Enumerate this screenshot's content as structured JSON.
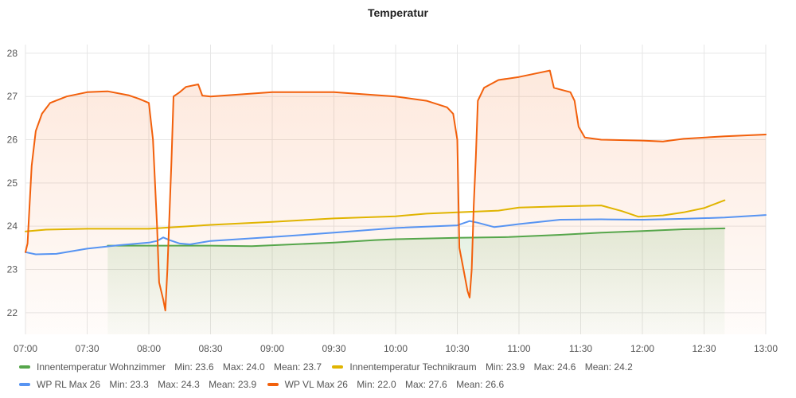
{
  "chart_data": {
    "type": "line",
    "title": "Temperatur",
    "xlabel": "",
    "ylabel": "",
    "ylim": [
      21.5,
      28.2
    ],
    "yticks": [
      22,
      23,
      24,
      25,
      26,
      27,
      28
    ],
    "x_range": [
      "07:00",
      "13:00"
    ],
    "x_ticks": [
      "07:00",
      "07:30",
      "08:00",
      "08:30",
      "09:00",
      "09:30",
      "10:00",
      "10:30",
      "11:00",
      "11:30",
      "12:00",
      "12:30",
      "13:00"
    ],
    "grid": true,
    "legend_position": "bottom",
    "series": [
      {
        "name": "Innentemperatur Wohnzimmer",
        "color": "#56a64b",
        "fill": true,
        "stats": {
          "min_label": "Min:",
          "min": "23.6",
          "max_label": "Max:",
          "max": "24.0",
          "mean_label": "Mean:",
          "mean": "23.7"
        },
        "points": [
          [
            "07:40",
            23.55
          ],
          [
            "08:00",
            23.55
          ],
          [
            "08:30",
            23.55
          ],
          [
            "08:50",
            23.54
          ],
          [
            "09:10",
            23.58
          ],
          [
            "09:30",
            23.62
          ],
          [
            "09:50",
            23.68
          ],
          [
            "10:00",
            23.7
          ],
          [
            "10:30",
            23.73
          ],
          [
            "10:55",
            23.75
          ],
          [
            "11:20",
            23.8
          ],
          [
            "11:40",
            23.85
          ],
          [
            "12:00",
            23.89
          ],
          [
            "12:20",
            23.93
          ],
          [
            "12:40",
            23.95
          ]
        ]
      },
      {
        "name": "Innentemperatur Technikraum",
        "color": "#e0b400",
        "fill": false,
        "stats": {
          "min_label": "Min:",
          "min": "23.9",
          "max_label": "Max:",
          "max": "24.6",
          "mean_label": "Mean:",
          "mean": "24.2"
        },
        "points": [
          [
            "07:00",
            23.88
          ],
          [
            "07:10",
            23.92
          ],
          [
            "07:30",
            23.94
          ],
          [
            "08:00",
            23.94
          ],
          [
            "08:30",
            24.03
          ],
          [
            "09:00",
            24.1
          ],
          [
            "09:30",
            24.18
          ],
          [
            "10:00",
            24.23
          ],
          [
            "10:15",
            24.29
          ],
          [
            "10:30",
            24.32
          ],
          [
            "10:50",
            24.36
          ],
          [
            "11:00",
            24.43
          ],
          [
            "11:20",
            24.46
          ],
          [
            "11:40",
            24.48
          ],
          [
            "11:50",
            24.35
          ],
          [
            "11:58",
            24.22
          ],
          [
            "12:10",
            24.25
          ],
          [
            "12:20",
            24.32
          ],
          [
            "12:30",
            24.42
          ],
          [
            "12:40",
            24.6
          ]
        ]
      },
      {
        "name": "WP RL Max 26",
        "color": "#5794f2",
        "fill": false,
        "stats": {
          "min_label": "Min:",
          "min": "23.3",
          "max_label": "Max:",
          "max": "24.3",
          "mean_label": "Mean:",
          "mean": "23.9"
        },
        "points": [
          [
            "07:00",
            23.4
          ],
          [
            "07:05",
            23.35
          ],
          [
            "07:15",
            23.36
          ],
          [
            "07:30",
            23.48
          ],
          [
            "07:45",
            23.56
          ],
          [
            "08:00",
            23.62
          ],
          [
            "08:04",
            23.66
          ],
          [
            "08:07",
            23.74
          ],
          [
            "08:10",
            23.68
          ],
          [
            "08:15",
            23.6
          ],
          [
            "08:20",
            23.58
          ],
          [
            "08:30",
            23.66
          ],
          [
            "09:00",
            23.75
          ],
          [
            "09:30",
            23.85
          ],
          [
            "10:00",
            23.96
          ],
          [
            "10:30",
            24.02
          ],
          [
            "10:36",
            24.12
          ],
          [
            "10:40",
            24.08
          ],
          [
            "10:48",
            23.98
          ],
          [
            "11:00",
            24.05
          ],
          [
            "11:20",
            24.15
          ],
          [
            "11:40",
            24.16
          ],
          [
            "12:00",
            24.15
          ],
          [
            "12:20",
            24.17
          ],
          [
            "12:40",
            24.2
          ],
          [
            "13:00",
            24.26
          ]
        ]
      },
      {
        "name": "WP VL Max 26",
        "color": "#f2600c",
        "fill": true,
        "stats": {
          "min_label": "Min:",
          "min": "22.0",
          "max_label": "Max:",
          "max": "27.6",
          "mean_label": "Mean:",
          "mean": "26.6"
        },
        "points": [
          [
            "07:00",
            23.4
          ],
          [
            "07:01",
            23.6
          ],
          [
            "07:03",
            25.4
          ],
          [
            "07:05",
            26.2
          ],
          [
            "07:08",
            26.6
          ],
          [
            "07:12",
            26.85
          ],
          [
            "07:20",
            27.0
          ],
          [
            "07:30",
            27.1
          ],
          [
            "07:40",
            27.12
          ],
          [
            "07:50",
            27.03
          ],
          [
            "07:55",
            26.95
          ],
          [
            "08:00",
            26.85
          ],
          [
            "08:02",
            26.0
          ],
          [
            "08:04",
            24.0
          ],
          [
            "08:05",
            22.7
          ],
          [
            "08:07",
            22.3
          ],
          [
            "08:08",
            22.05
          ],
          [
            "08:09",
            23.0
          ],
          [
            "08:11",
            25.5
          ],
          [
            "08:12",
            27.0
          ],
          [
            "08:15",
            27.1
          ],
          [
            "08:18",
            27.22
          ],
          [
            "08:24",
            27.28
          ],
          [
            "08:26",
            27.02
          ],
          [
            "08:30",
            27.0
          ],
          [
            "09:00",
            27.1
          ],
          [
            "09:30",
            27.1
          ],
          [
            "10:00",
            27.0
          ],
          [
            "10:15",
            26.9
          ],
          [
            "10:25",
            26.75
          ],
          [
            "10:28",
            26.6
          ],
          [
            "10:30",
            26.0
          ],
          [
            "10:31",
            23.5
          ],
          [
            "10:33",
            23.0
          ],
          [
            "10:35",
            22.5
          ],
          [
            "10:36",
            22.35
          ],
          [
            "10:37",
            23.0
          ],
          [
            "10:38",
            24.5
          ],
          [
            "10:39",
            25.6
          ],
          [
            "10:40",
            26.9
          ],
          [
            "10:43",
            27.2
          ],
          [
            "10:50",
            27.38
          ],
          [
            "11:00",
            27.45
          ],
          [
            "11:10",
            27.55
          ],
          [
            "11:15",
            27.6
          ],
          [
            "11:17",
            27.2
          ],
          [
            "11:25",
            27.1
          ],
          [
            "11:27",
            26.9
          ],
          [
            "11:29",
            26.3
          ],
          [
            "11:32",
            26.05
          ],
          [
            "11:40",
            26.0
          ],
          [
            "12:00",
            25.98
          ],
          [
            "12:10",
            25.96
          ],
          [
            "12:20",
            26.02
          ],
          [
            "12:40",
            26.08
          ],
          [
            "13:00",
            26.12
          ]
        ]
      }
    ]
  }
}
